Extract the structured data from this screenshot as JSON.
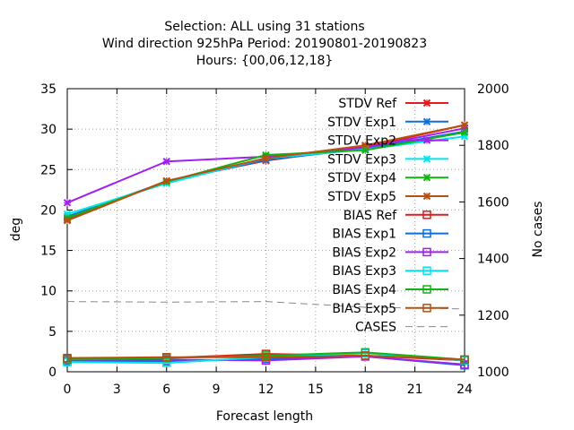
{
  "chart_data": {
    "type": "line",
    "title_lines": [
      "Selection: ALL using    31 stations",
      "Wind direction 925hPa   Period: 20190801-20190823",
      "Hours: {00,06,12,18}"
    ],
    "xlabel": "Forecast length",
    "ylabel": "deg",
    "y2label": "No cases",
    "xlim": [
      0,
      24
    ],
    "ylim": [
      0,
      35
    ],
    "y2lim": [
      1000,
      2000
    ],
    "xticks": [
      "0",
      "3",
      "6",
      "9",
      "12",
      "15",
      "18",
      "21",
      "24"
    ],
    "yticks": [
      "0",
      "5",
      "10",
      "15",
      "20",
      "25",
      "30",
      "35"
    ],
    "y2ticks": [
      "1000",
      "1200",
      "1400",
      "1600",
      "1800",
      "2000"
    ],
    "grid": true,
    "legend_position": "top-right",
    "x": [
      0,
      6,
      12,
      18,
      24
    ],
    "series": [
      {
        "name": "STDV Ref",
        "color": "#e41a1c",
        "marker": "x",
        "values": [
          18.8,
          23.6,
          26.1,
          27.8,
          30.5
        ]
      },
      {
        "name": "STDV Exp1",
        "color": "#0d6fd8",
        "marker": "x",
        "values": [
          19.2,
          23.5,
          26.2,
          27.6,
          29.7
        ]
      },
      {
        "name": "STDV Exp2",
        "color": "#a020f0",
        "marker": "x",
        "values": [
          20.9,
          26.0,
          26.6,
          27.7,
          30.1
        ]
      },
      {
        "name": "STDV Exp3",
        "color": "#00e5ee",
        "marker": "x",
        "values": [
          19.5,
          23.3,
          26.4,
          27.5,
          29.1
        ]
      },
      {
        "name": "STDV Exp4",
        "color": "#13b313",
        "marker": "x",
        "values": [
          19.0,
          23.5,
          26.8,
          27.4,
          29.6
        ]
      },
      {
        "name": "STDV Exp5",
        "color": "#b8500f",
        "marker": "x",
        "values": [
          18.7,
          23.6,
          26.4,
          28.0,
          30.5
        ]
      },
      {
        "name": "BIAS Ref",
        "color": "#e41a1c",
        "marker": "square",
        "values": [
          1.6,
          1.7,
          2.2,
          2.0,
          1.4
        ]
      },
      {
        "name": "BIAS Exp1",
        "color": "#0d6fd8",
        "marker": "square",
        "values": [
          1.3,
          1.3,
          1.6,
          1.9,
          0.8
        ]
      },
      {
        "name": "BIAS Exp2",
        "color": "#a020f0",
        "marker": "square",
        "values": [
          1.5,
          1.5,
          1.4,
          1.9,
          0.9
        ]
      },
      {
        "name": "BIAS Exp3",
        "color": "#00e5ee",
        "marker": "square",
        "values": [
          1.2,
          1.1,
          1.8,
          2.3,
          1.4
        ]
      },
      {
        "name": "BIAS Exp4",
        "color": "#13b313",
        "marker": "square",
        "values": [
          1.5,
          1.7,
          2.0,
          2.4,
          1.5
        ]
      },
      {
        "name": "BIAS Exp5",
        "color": "#b8500f",
        "marker": "square",
        "values": [
          1.7,
          1.8,
          1.8,
          2.0,
          1.5
        ]
      }
    ],
    "cases": {
      "name": "CASES",
      "color": "#888888",
      "axis": "y2",
      "x": [
        0,
        6,
        12,
        18,
        24
      ],
      "values": [
        1248,
        1246,
        1248,
        1228,
        1222
      ]
    }
  }
}
